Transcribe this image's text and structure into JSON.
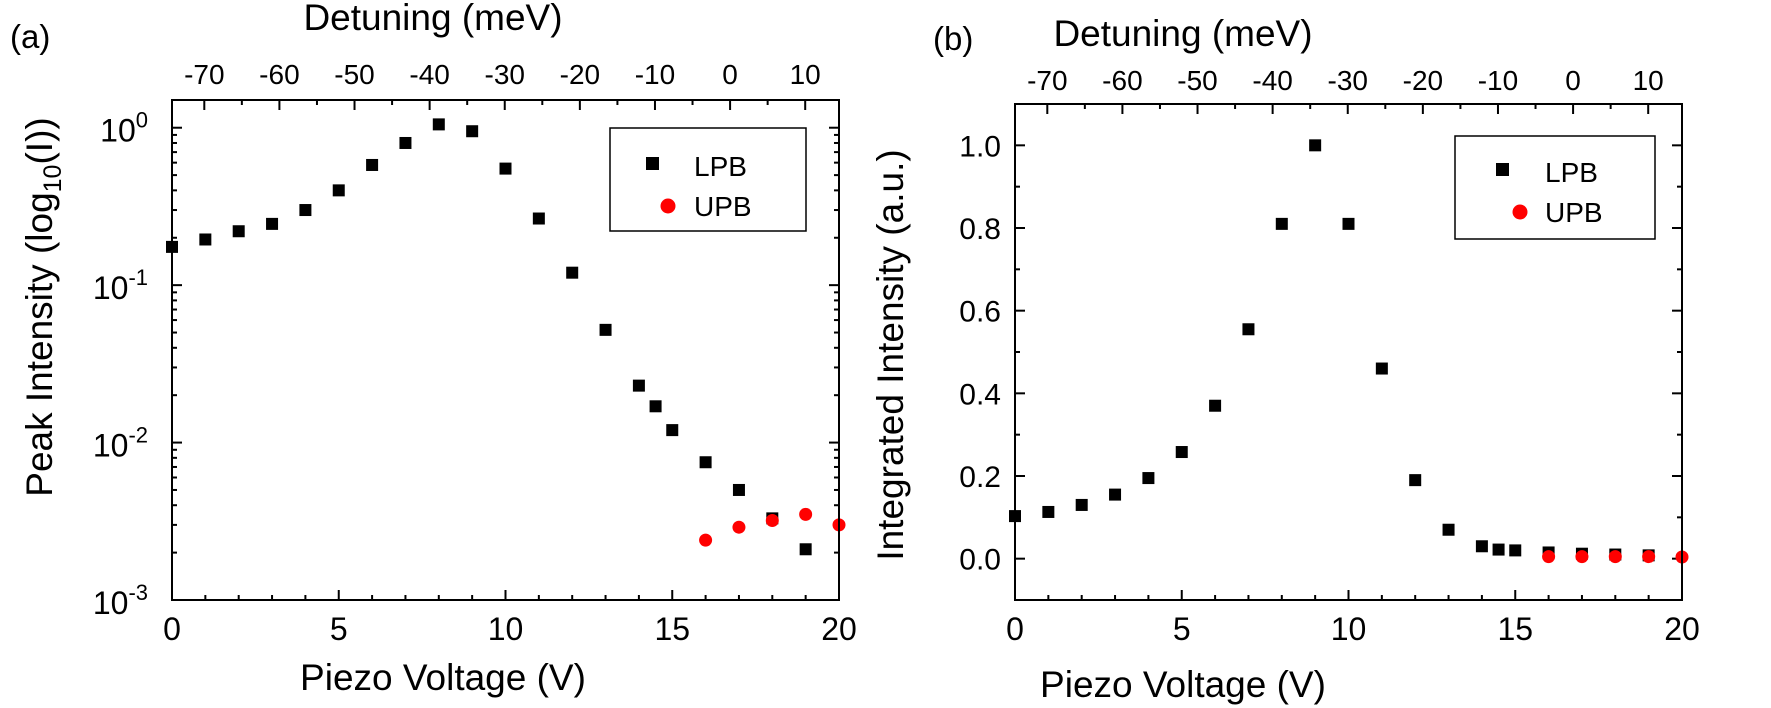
{
  "chart_data": [
    {
      "panel_label": "(a)",
      "type": "scatter",
      "ylabel_parts": [
        "Peak Intensity (log",
        "10",
        "(I))"
      ],
      "xlabel": "Piezo Voltage (V)",
      "top_xlabel": "Detuning (meV)",
      "xlim": [
        0,
        20
      ],
      "ylim": [
        0.001,
        1.5
      ],
      "yscale": "log",
      "xticks": [
        "0",
        "5",
        "10",
        "15",
        "20"
      ],
      "yticks": [
        {
          "base": "10",
          "exp": "0",
          "value": 1
        },
        {
          "base": "10",
          "exp": "-1",
          "value": 0.1
        },
        {
          "base": "10",
          "exp": "-2",
          "value": 0.01
        },
        {
          "base": "10",
          "exp": "-3",
          "value": 0.001
        }
      ],
      "top_xticks": [
        "-70",
        "-60",
        "-50",
        "-40",
        "-30",
        "-20",
        "-10",
        "0",
        "10"
      ],
      "legend_position": "top-right",
      "series": [
        {
          "name": "LPB",
          "color": "#000000",
          "marker": "square",
          "x": [
            0,
            1,
            2,
            3,
            4,
            5,
            6,
            7,
            8,
            9,
            10,
            11,
            12,
            13,
            14,
            14.5,
            15,
            16,
            17,
            18,
            19
          ],
          "y": [
            0.175,
            0.195,
            0.22,
            0.245,
            0.3,
            0.4,
            0.58,
            0.8,
            1.05,
            0.95,
            0.55,
            0.265,
            0.12,
            0.052,
            0.023,
            0.017,
            0.012,
            0.0075,
            0.005,
            0.0033,
            0.0021
          ]
        },
        {
          "name": "UPB",
          "color": "#ff0000",
          "marker": "circle",
          "x": [
            16,
            17,
            18,
            19,
            20
          ],
          "y": [
            0.0024,
            0.0029,
            0.0032,
            0.0035,
            0.003
          ]
        }
      ]
    },
    {
      "panel_label": "(b)",
      "type": "scatter",
      "ylabel": "Integrated Intensity (a.u.)",
      "xlabel": "Piezo Voltage (V)",
      "top_xlabel": "Detuning (meV)",
      "xlim": [
        0,
        20
      ],
      "ylim": [
        -0.1,
        1.1
      ],
      "xticks": [
        "0",
        "5",
        "10",
        "15",
        "20"
      ],
      "yticks": [
        "0.0",
        "0.2",
        "0.4",
        "0.6",
        "0.8",
        "1.0"
      ],
      "top_xticks": [
        "-70",
        "-60",
        "-50",
        "-40",
        "-30",
        "-20",
        "-10",
        "0",
        "10"
      ],
      "legend_position": "top-right",
      "series": [
        {
          "name": "LPB",
          "color": "#000000",
          "marker": "square",
          "x": [
            0,
            1,
            2,
            3,
            4,
            5,
            6,
            7,
            8,
            9,
            10,
            11,
            12,
            13,
            14,
            14.5,
            15,
            16,
            17,
            18,
            19
          ],
          "y": [
            0.103,
            0.113,
            0.13,
            0.155,
            0.195,
            0.258,
            0.37,
            0.555,
            0.81,
            1.0,
            0.81,
            0.46,
            0.19,
            0.07,
            0.03,
            0.022,
            0.02,
            0.015,
            0.012,
            0.01,
            0.008
          ]
        },
        {
          "name": "UPB",
          "color": "#ff0000",
          "marker": "circle",
          "x": [
            16,
            17,
            18,
            19,
            20
          ],
          "y": [
            0.005,
            0.005,
            0.005,
            0.005,
            0.004
          ]
        }
      ]
    }
  ]
}
